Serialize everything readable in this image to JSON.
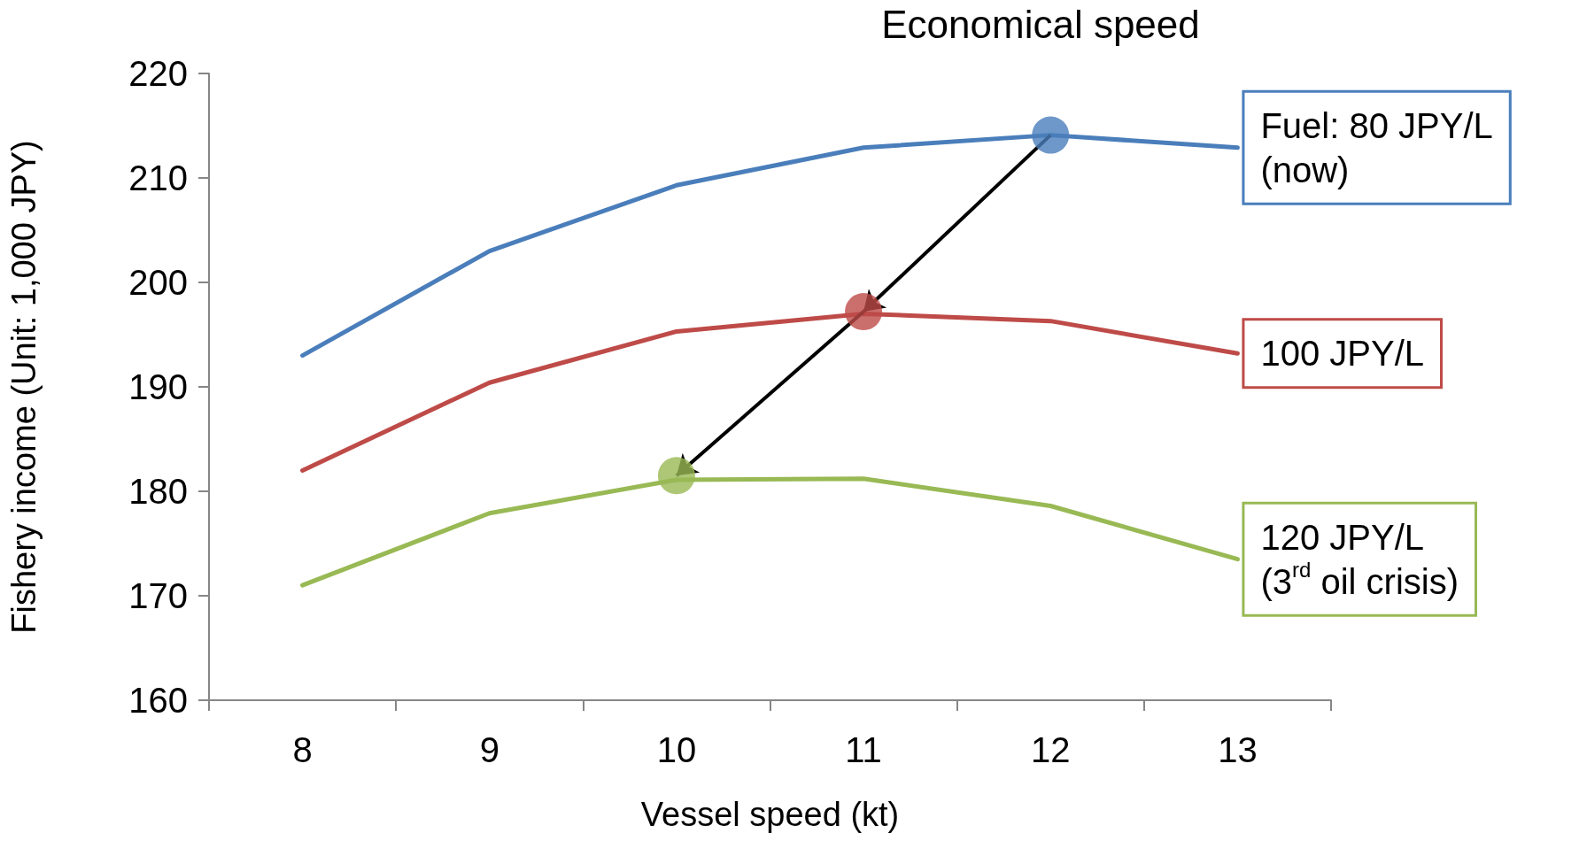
{
  "chart_data": {
    "type": "line",
    "title": "Economical speed",
    "xlabel": "Vessel speed (kt)",
    "ylabel": "Fishery income (Unit: 1,000 JPY)",
    "categories": [
      "8",
      "9",
      "10",
      "11",
      "12",
      "13"
    ],
    "series": [
      {
        "name": "Fuel: 80 JPY/L\n(now)",
        "color": "#4a7ebb",
        "values": [
          193,
          203,
          209.3,
          212.9,
          214.1,
          212.9
        ]
      },
      {
        "name": "100 JPY/L",
        "color": "#be4b48",
        "values": [
          182,
          190.4,
          195.3,
          197,
          196.3,
          193.2
        ]
      },
      {
        "name": "120 JPY/L\n(3$^{rd}$ oil crisis)",
        "color": "#98b954",
        "values": [
          171,
          177.9,
          181.1,
          181.2,
          178.6,
          173.5
        ]
      },
      {
        "type": "scatter",
        "x": [
          "12",
          "11",
          "10"
        ],
        "values": [
          214.1,
          197.2,
          181.5
        ],
        "colors": [
          "#4a7ebb",
          "#be4b48",
          "#98b954"
        ],
        "marker": "circle"
      }
    ],
    "ylim": [
      160,
      220
    ],
    "yticks": [
      160,
      170,
      180,
      190,
      200,
      210,
      220
    ],
    "grid": false,
    "legend": false,
    "marker": "none",
    "line_style": "solid"
  }
}
